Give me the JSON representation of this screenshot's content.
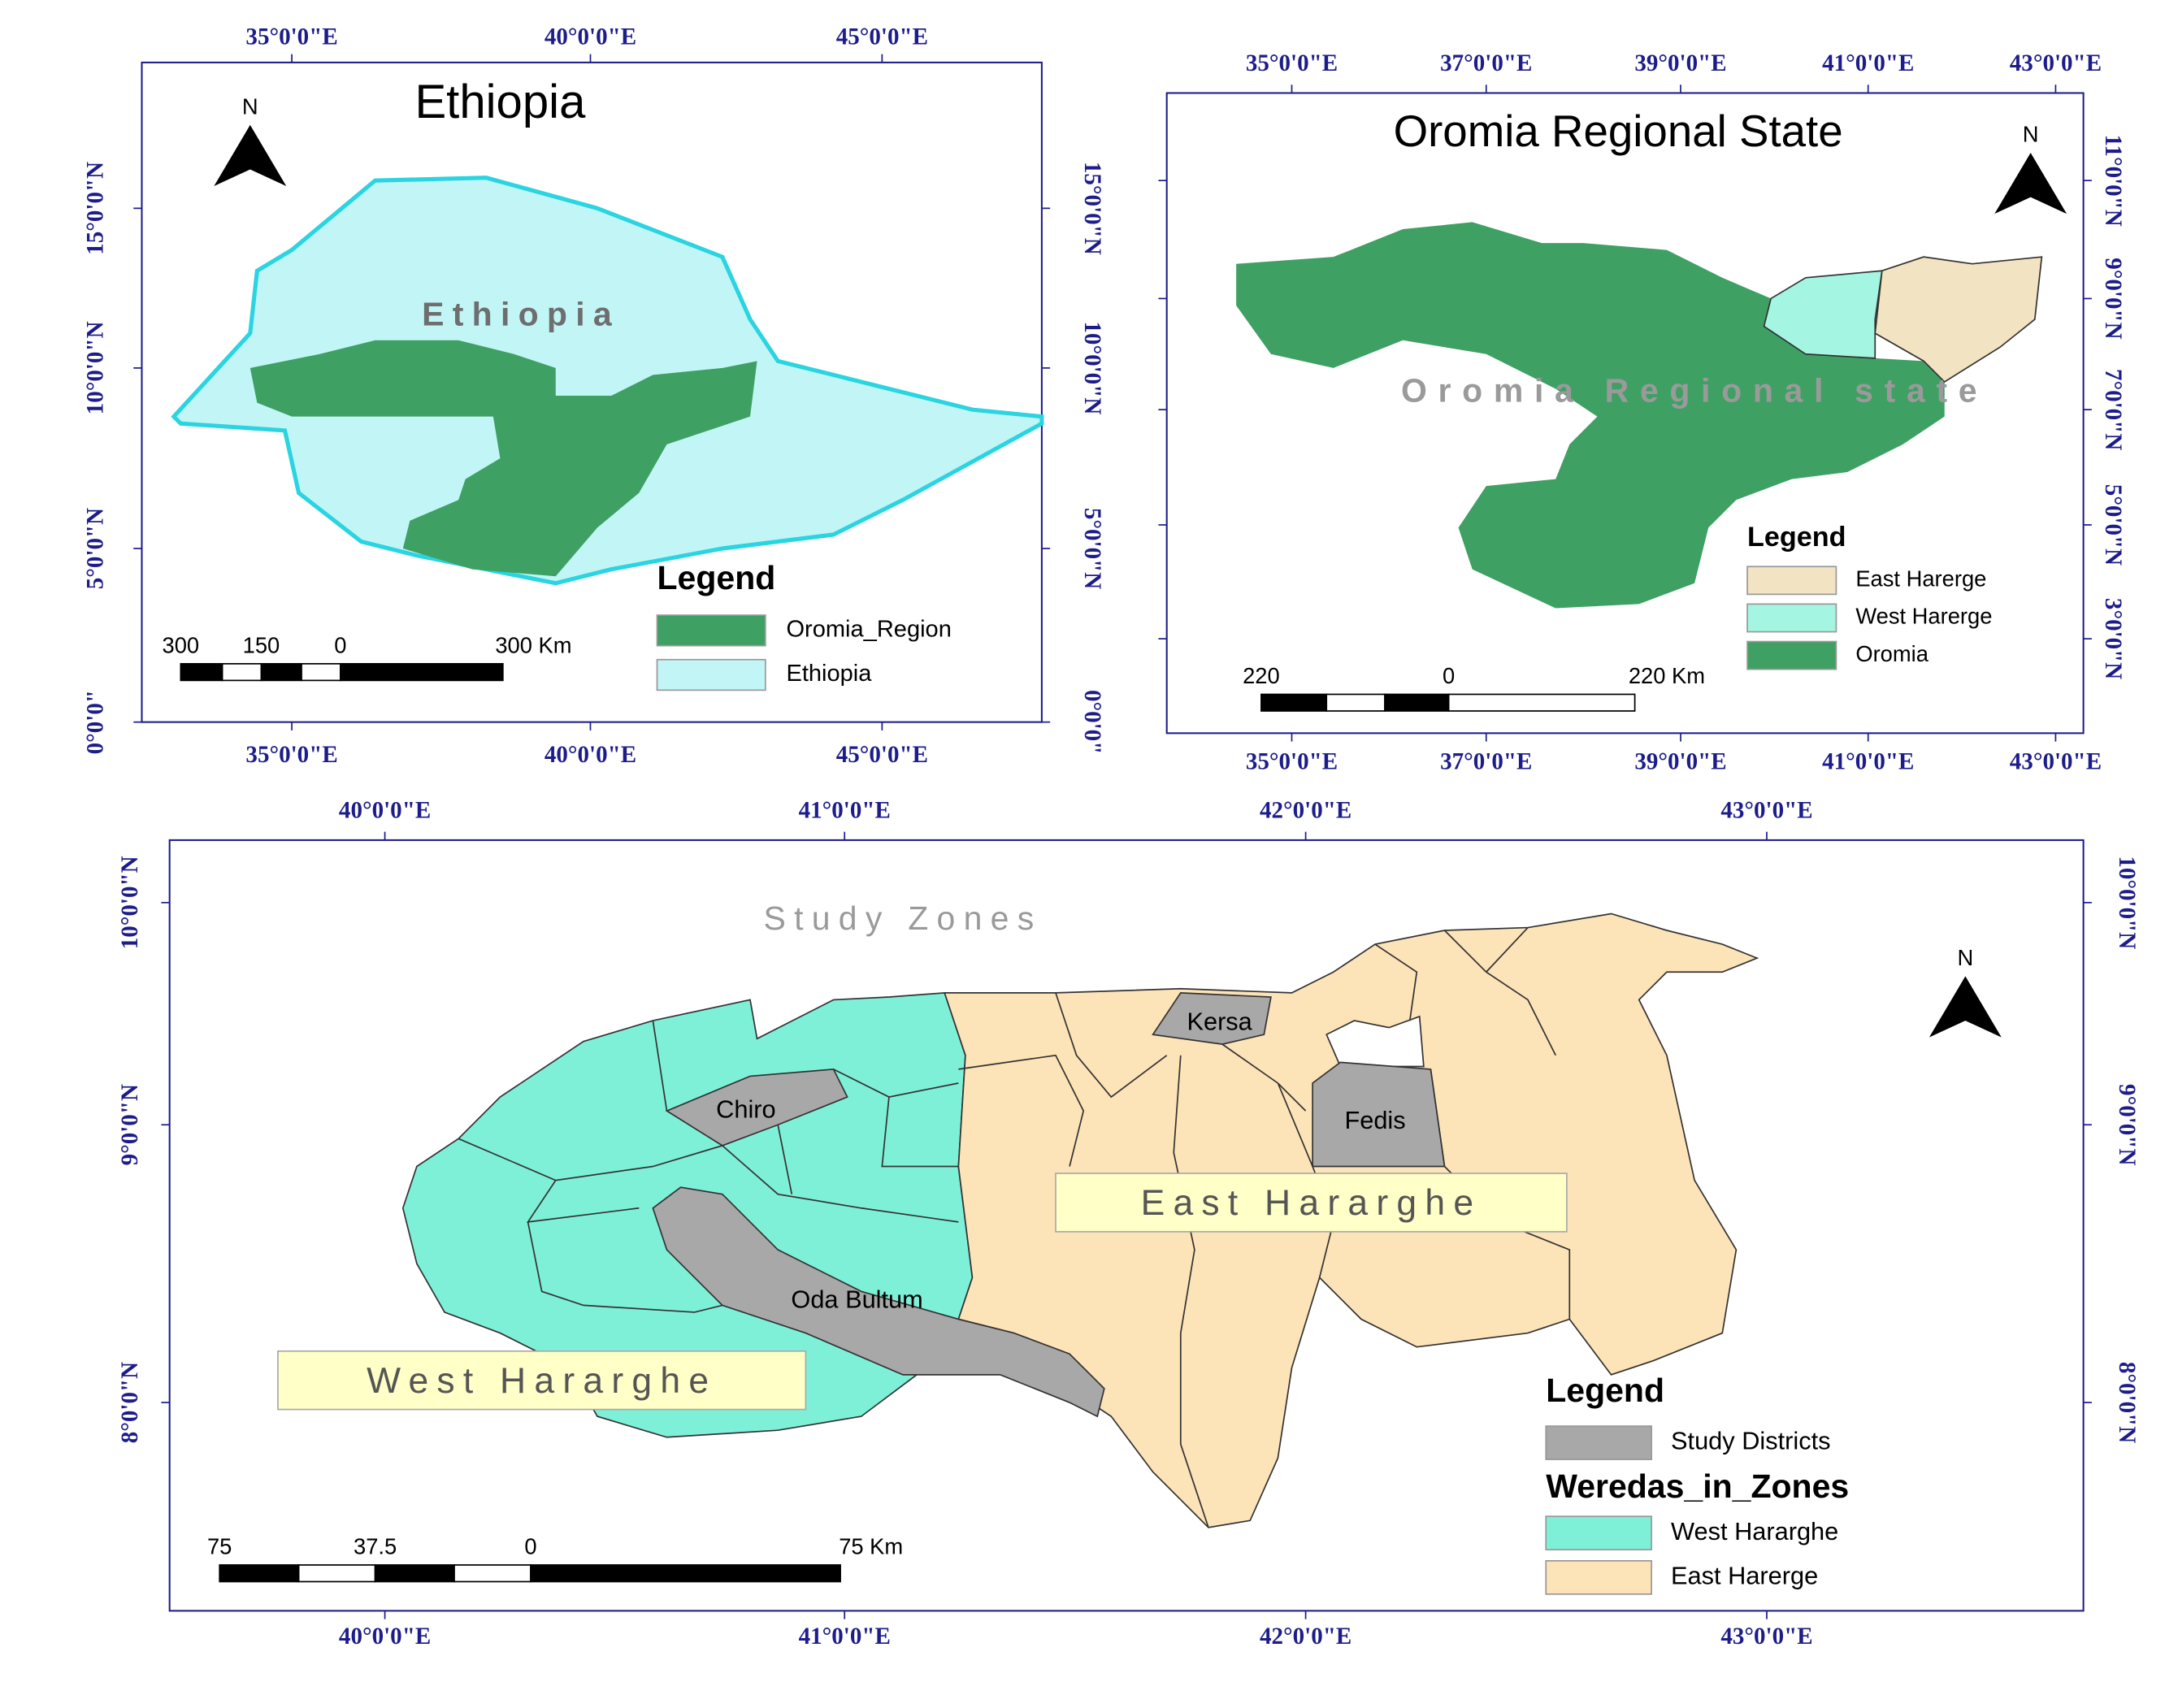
{
  "panels": [
    {
      "title": "Ethiopia",
      "map_label": "Ethiopia",
      "lon_ticks": [
        "35°0'0\"E",
        "40°0'0\"E",
        "45°0'0\"E"
      ],
      "lat_ticks": [
        "15°0'0\"N",
        "10°0'0\"N",
        "5°0'0\"N",
        "0°0'0\""
      ],
      "north": "N",
      "legend": {
        "title": "Legend",
        "items": [
          {
            "label": "Oromia_Region",
            "color": "#3fa064"
          },
          {
            "label": "Ethiopia",
            "color": "#c2f6f6"
          }
        ]
      },
      "scale_bar": [
        "300",
        "150",
        "0",
        "300 Km"
      ]
    },
    {
      "title": "Oromia Regional State",
      "map_label": "Oromia Regional state",
      "lon_ticks": [
        "35°0'0\"E",
        "37°0'0\"E",
        "39°0'0\"E",
        "41°0'0\"E",
        "43°0'0\"E"
      ],
      "lat_ticks": [
        "11°0'0\"N",
        "9°0'0\"N",
        "7°0'0\"N",
        "5°0'0\"N",
        "3°0'0\"N"
      ],
      "north": "N",
      "legend": {
        "title": "Legend",
        "items": [
          {
            "label": "East Harerge",
            "color": "#f2e3c2"
          },
          {
            "label": "West Harerge",
            "color": "#a4f5e2"
          },
          {
            "label": "Oromia",
            "color": "#3fa064"
          }
        ]
      },
      "scale_bar": [
        "220",
        "0",
        "220 Km"
      ]
    },
    {
      "title": "Study Zones",
      "lon_ticks": [
        "40°0'0\"E",
        "41°0'0\"E",
        "42°0'0\"E",
        "43°0'0\"E"
      ],
      "lat_ticks": [
        "10°0'0\"N",
        "9°0'0\"N",
        "8°0'0\"N"
      ],
      "north": "N",
      "districts": [
        "Kersa",
        "Chiro",
        "Fedis",
        "Oda Bultum"
      ],
      "zones": [
        "East Hararghe",
        "West Hararghe"
      ],
      "legend": {
        "title": "Legend",
        "items": [
          {
            "label": "Study Districts",
            "color": "#a8a8a8"
          }
        ],
        "subtitle": "Weredas_in_Zones",
        "sub_items": [
          {
            "label": "West Hararghe",
            "color": "#7ff0d8"
          },
          {
            "label": "East Harerge",
            "color": "#fde3b8"
          }
        ]
      },
      "scale_bar": [
        "75",
        "37.5",
        "0",
        "75 Km"
      ]
    }
  ]
}
